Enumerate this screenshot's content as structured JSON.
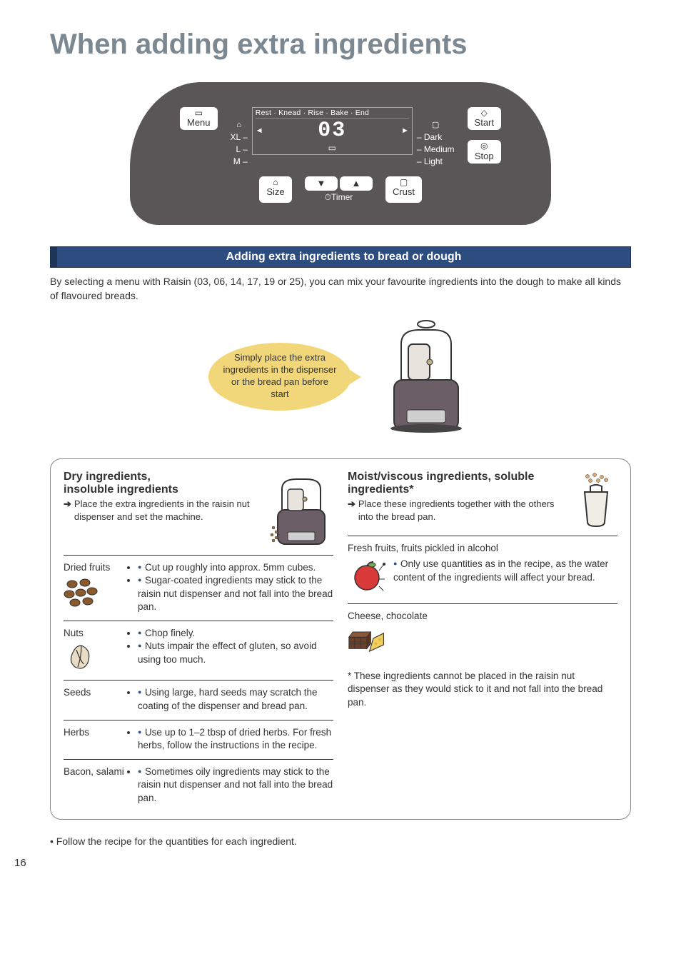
{
  "title": "When adding extra ingredients",
  "panel": {
    "bg": "#5a5658",
    "menu_btn": "Menu",
    "start_btn": "Start",
    "stop_btn": "Stop",
    "size_btn": "Size",
    "crust_btn": "Crust",
    "timer_label": "Timer",
    "phases": "Rest · Knead · Rise · Bake · End",
    "digits": "03",
    "sizes": [
      "XL –",
      "L –",
      "M –"
    ],
    "crusts": [
      "– Dark",
      "– Medium",
      "– Light"
    ]
  },
  "section_bar": "Adding extra ingredients to bread or dough",
  "intro": "By selecting a menu with Raisin (03, 06, 14, 17, 19 or 25), you can mix your favourite ingredients into the dough to make all kinds of flavoured breads.",
  "callout": "Simply place the extra ingredients in the dispenser or the bread pan before start",
  "left": {
    "heading1": "Dry ingredients,",
    "heading2": "insoluble ingredients",
    "instr": "Place the extra ingredients in the raisin nut dispenser and set the machine.",
    "items": [
      {
        "label": "Dried fruits",
        "bullets": [
          "Cut up roughly into approx. 5mm cubes.",
          "Sugar-coated ingredients may stick to the raisin nut dispenser and not fall into the bread pan."
        ]
      },
      {
        "label": "Nuts",
        "bullets": [
          "Chop finely.",
          "Nuts impair the effect of gluten, so avoid using too much."
        ]
      },
      {
        "label": "Seeds",
        "bullets": [
          "Using large, hard seeds may scratch the coating of the dispenser and bread pan."
        ]
      },
      {
        "label": "Herbs",
        "bullets": [
          "Use up to 1–2 tbsp of dried herbs. For fresh herbs, follow the instructions in the recipe."
        ]
      },
      {
        "label": "Bacon, salami",
        "bullets": [
          "Sometimes oily ingredients may stick to the raisin nut dispenser and not fall into the bread pan."
        ]
      }
    ]
  },
  "right": {
    "heading1": "Moist/viscous ingredients, soluble",
    "heading2": "ingredients*",
    "instr": "Place these ingredients together with the others into the bread pan.",
    "items": [
      {
        "label": "Fresh fruits, fruits pickled in alcohol",
        "bullets": [
          "Only use quantities as in the recipe, as the water content of the ingredients will affect your bread."
        ]
      },
      {
        "label": "Cheese, chocolate",
        "bullets": []
      }
    ],
    "footnote": "* These ingredients cannot be placed in the raisin nut dispenser as they would stick to it and not fall into the bread pan."
  },
  "bottom_note": "• Follow the recipe for the quantities for each ingredient.",
  "page_num": "16",
  "colors": {
    "bar_bg": "#2d4d80",
    "callout_bg": "#f2d77a",
    "heading_color": "#7c8891"
  }
}
